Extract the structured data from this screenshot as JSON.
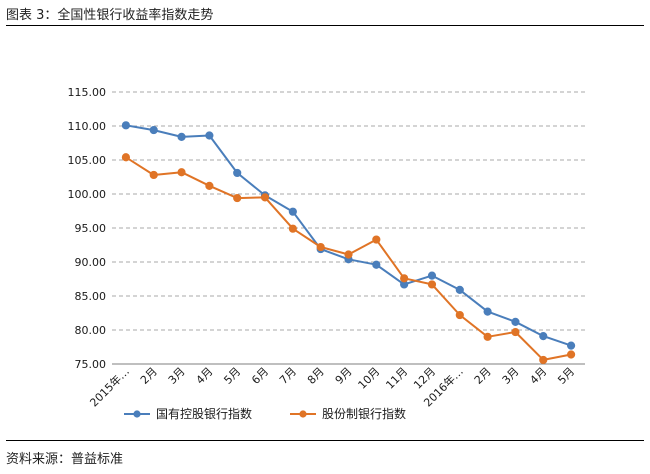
{
  "figure": {
    "title": "图表 3：全国性银行收益率指数走势",
    "source": "资料来源：普益标准"
  },
  "colors": {
    "series_1": "#4a7ebb",
    "series_2": "#e07426",
    "grid": "#8c8c8c",
    "axis": "#7f7f7f"
  },
  "chart_data": {
    "type": "line",
    "title": "",
    "xlabel": "",
    "ylabel": "",
    "categories": [
      "2015年…",
      "2月",
      "3月",
      "4月",
      "5月",
      "6月",
      "7月",
      "8月",
      "9月",
      "10月",
      "11月",
      "12月",
      "2016年…",
      "2月",
      "3月",
      "4月",
      "5月"
    ],
    "y_ticks": [
      "75.00",
      "80.00",
      "85.00",
      "90.00",
      "95.00",
      "100.00",
      "105.00",
      "110.00",
      "115.00"
    ],
    "ylim": [
      75,
      115
    ],
    "grid": "horizontal dashed",
    "legend_position": "bottom",
    "series": [
      {
        "name": "国有控股银行指数",
        "color": "#4a7ebb",
        "values": [
          110.1,
          109.4,
          108.4,
          108.6,
          103.1,
          99.8,
          97.4,
          91.9,
          90.4,
          89.6,
          86.7,
          88.0,
          85.9,
          82.7,
          81.2,
          79.1,
          77.7
        ]
      },
      {
        "name": "股份制银行指数",
        "color": "#e07426",
        "values": [
          105.4,
          102.8,
          103.2,
          101.2,
          99.4,
          99.5,
          94.9,
          92.2,
          91.1,
          93.3,
          87.6,
          86.7,
          82.2,
          79.0,
          79.7,
          75.6,
          76.4
        ]
      }
    ]
  }
}
